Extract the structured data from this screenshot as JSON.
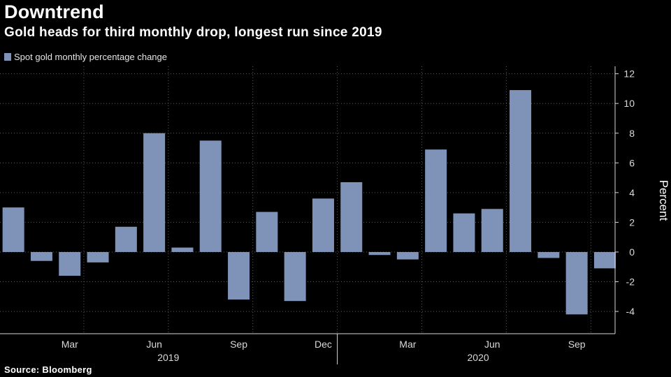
{
  "header": {
    "title": "Downtrend",
    "subtitle": "Gold heads for third monthly drop, longest run since 2019"
  },
  "source": "Source: Bloomberg",
  "colors": {
    "background": "#000000",
    "bar": "#7f93b8",
    "grid": "#5a5a5a",
    "text": "#ffffff",
    "axis_text": "#d9d9d9"
  },
  "chart_data": {
    "type": "bar",
    "title": "Downtrend",
    "subtitle": "Gold heads for third monthly drop, longest run since 2019",
    "legend": [
      "Spot gold monthly percentage change"
    ],
    "legend_position": "top-left",
    "xlabel": "",
    "ylabel": "Percent",
    "ylim": [
      -5.5,
      12.5
    ],
    "yticks": [
      -4,
      -2,
      0,
      2,
      4,
      6,
      8,
      10,
      12
    ],
    "grid": true,
    "categories": [
      "Jan 2019",
      "Feb 2019",
      "Mar 2019",
      "Apr 2019",
      "May 2019",
      "Jun 2019",
      "Jul 2019",
      "Aug 2019",
      "Sep 2019",
      "Oct 2019",
      "Nov 2019",
      "Dec 2019",
      "Jan 2020",
      "Feb 2020",
      "Mar 2020",
      "Apr 2020",
      "May 2020",
      "Jun 2020",
      "Jul 2020",
      "Aug 2020",
      "Sep 2020",
      "Oct 2020"
    ],
    "series": [
      {
        "name": "Spot gold monthly percentage change",
        "values": [
          3.0,
          -0.6,
          -1.6,
          -0.7,
          1.7,
          8.0,
          0.3,
          7.5,
          -3.2,
          2.7,
          -3.3,
          3.6,
          4.7,
          -0.2,
          -0.5,
          6.9,
          2.6,
          2.9,
          10.9,
          -0.4,
          -4.2,
          -1.1
        ]
      }
    ],
    "x_tick_labels": [
      {
        "label": "Mar",
        "index": 2
      },
      {
        "label": "Jun",
        "index": 5
      },
      {
        "label": "Sep",
        "index": 8
      },
      {
        "label": "Dec",
        "index": 11
      },
      {
        "label": "Mar",
        "index": 14
      },
      {
        "label": "Jun",
        "index": 17
      },
      {
        "label": "Sep",
        "index": 20
      }
    ],
    "x_year_labels": [
      {
        "label": "2019",
        "from": 0,
        "to": 11
      },
      {
        "label": "2020",
        "from": 12,
        "to": 21
      }
    ]
  }
}
